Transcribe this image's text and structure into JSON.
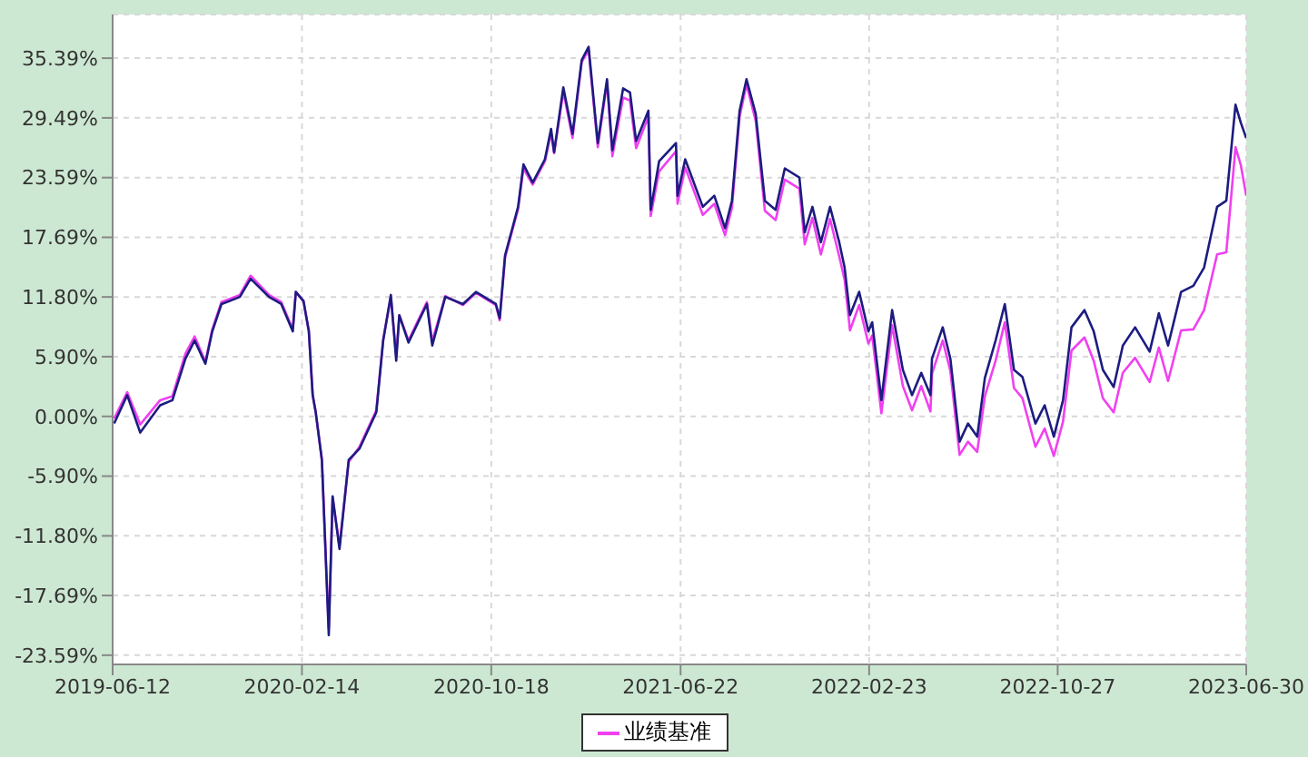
{
  "chart_data": {
    "type": "line",
    "x": [
      "2019-06-14",
      "2019-07-01",
      "2019-07-18",
      "2019-08-13",
      "2019-08-29",
      "2019-09-15",
      "2019-09-27",
      "2019-10-11",
      "2019-10-20",
      "2019-11-01",
      "2019-11-25",
      "2019-12-09",
      "2020-01-02",
      "2020-01-18",
      "2020-02-02",
      "2020-02-06",
      "2020-02-16",
      "2020-02-23",
      "2020-02-28",
      "2020-03-03",
      "2020-03-11",
      "2020-03-20",
      "2020-03-25",
      "2020-04-03",
      "2020-04-15",
      "2020-04-29",
      "2020-05-21",
      "2020-05-30",
      "2020-06-09",
      "2020-06-16",
      "2020-06-20",
      "2020-07-02",
      "2020-07-26",
      "2020-08-02",
      "2020-08-19",
      "2020-09-11",
      "2020-09-28",
      "2020-10-24",
      "2020-10-29",
      "2020-11-05",
      "2020-11-22",
      "2020-11-29",
      "2020-12-11",
      "2020-12-27",
      "2021-01-04",
      "2021-01-08",
      "2021-01-20",
      "2021-02-01",
      "2021-02-13",
      "2021-02-22",
      "2021-03-06",
      "2021-03-18",
      "2021-03-25",
      "2021-04-08",
      "2021-04-17",
      "2021-04-25",
      "2021-05-11",
      "2021-05-14",
      "2021-05-25",
      "2021-06-16",
      "2021-06-18",
      "2021-06-28",
      "2021-07-21",
      "2021-08-05",
      "2021-08-19",
      "2021-08-28",
      "2021-09-07",
      "2021-09-16",
      "2021-09-28",
      "2021-10-10",
      "2021-10-24",
      "2021-11-05",
      "2021-11-24",
      "2021-12-01",
      "2021-12-11",
      "2021-12-22",
      "2022-01-03",
      "2022-01-15",
      "2022-01-22",
      "2022-01-29",
      "2022-02-10",
      "2022-02-22",
      "2022-02-27",
      "2022-03-11",
      "2022-03-25",
      "2022-04-08",
      "2022-04-20",
      "2022-05-02",
      "2022-05-14",
      "2022-05-16",
      "2022-05-30",
      "2022-06-09",
      "2022-06-21",
      "2022-07-02",
      "2022-07-14",
      "2022-07-24",
      "2022-08-07",
      "2022-08-19",
      "2022-08-31",
      "2022-09-11",
      "2022-09-28",
      "2022-10-10",
      "2022-10-22",
      "2022-11-03",
      "2022-11-14",
      "2022-12-01",
      "2022-12-13",
      "2022-12-25",
      "2023-01-08",
      "2023-01-20",
      "2023-02-05",
      "2023-02-24",
      "2023-03-08",
      "2023-03-20",
      "2023-04-06",
      "2023-04-22",
      "2023-05-06",
      "2023-05-23",
      "2023-06-04",
      "2023-06-16",
      "2023-06-23",
      "2023-06-30"
    ],
    "series": [
      {
        "color": "#1c1c80",
        "values": [
          -0.7,
          2.1,
          -1.6,
          1.1,
          1.6,
          5.7,
          7.5,
          5.2,
          8.4,
          11.1,
          11.8,
          13.6,
          11.8,
          11.1,
          8.4,
          12.3,
          11.4,
          8.4,
          2.1,
          0.4,
          -4.3,
          -21.6,
          -7.9,
          -13.1,
          -4.3,
          -3.2,
          0.4,
          7.5,
          12.0,
          5.5,
          10.0,
          7.3,
          11.1,
          7.0,
          11.8,
          11.1,
          12.3,
          11.1,
          9.7,
          15.9,
          20.7,
          24.9,
          23.1,
          25.4,
          28.4,
          26.1,
          32.5,
          27.9,
          35.2,
          36.5,
          27.0,
          33.3,
          26.3,
          32.4,
          32.0,
          27.2,
          30.2,
          20.4,
          25.2,
          27.0,
          21.8,
          25.4,
          20.7,
          21.8,
          18.6,
          21.3,
          30.2,
          33.3,
          29.9,
          21.3,
          20.4,
          24.5,
          23.6,
          18.2,
          20.7,
          17.2,
          20.7,
          17.2,
          14.7,
          10.0,
          12.3,
          8.4,
          9.3,
          1.6,
          10.5,
          4.6,
          2.1,
          4.3,
          2.1,
          5.7,
          8.8,
          5.7,
          -2.5,
          -0.7,
          -2.0,
          3.8,
          7.5,
          11.1,
          4.6,
          3.9,
          -0.7,
          1.1,
          -2.0,
          1.6,
          8.8,
          10.5,
          8.4,
          4.6,
          2.9,
          7.0,
          8.8,
          6.4,
          10.2,
          7.0,
          12.3,
          12.9,
          14.7,
          20.7,
          21.3,
          30.8,
          29.0,
          27.5
        ]
      },
      {
        "name": "业绩基准",
        "color": "#f040f0",
        "values": [
          -0.2,
          2.4,
          -0.8,
          1.6,
          2.0,
          6.2,
          7.9,
          5.4,
          8.6,
          11.3,
          12.0,
          13.9,
          12.0,
          11.3,
          8.6,
          12.3,
          11.4,
          8.4,
          2.1,
          0.4,
          -4.3,
          -21.0,
          -8.0,
          -12.8,
          -4.5,
          -3.0,
          0.6,
          7.6,
          11.8,
          6.0,
          10.0,
          7.5,
          11.3,
          7.4,
          11.9,
          11.0,
          12.2,
          11.0,
          9.5,
          15.7,
          20.5,
          24.5,
          22.9,
          25.2,
          28.0,
          26.0,
          32.1,
          27.5,
          35.0,
          36.2,
          26.6,
          33.0,
          25.7,
          31.5,
          31.2,
          26.5,
          29.6,
          19.8,
          24.2,
          26.2,
          21.0,
          24.6,
          19.9,
          21.0,
          17.9,
          20.6,
          29.6,
          32.8,
          29.2,
          20.3,
          19.4,
          23.4,
          22.5,
          17.0,
          19.6,
          16.0,
          19.5,
          15.8,
          13.5,
          8.5,
          11.0,
          7.2,
          8.0,
          0.3,
          9.0,
          3.0,
          0.6,
          3.0,
          0.5,
          4.2,
          7.5,
          4.5,
          -3.8,
          -2.5,
          -3.5,
          2.0,
          5.5,
          9.3,
          2.8,
          1.8,
          -3.0,
          -1.2,
          -3.9,
          -0.5,
          6.5,
          7.8,
          5.5,
          1.8,
          0.4,
          4.3,
          5.8,
          3.4,
          6.8,
          3.5,
          8.5,
          8.6,
          10.5,
          16.0,
          16.2,
          26.6,
          24.8,
          21.8
        ]
      }
    ],
    "xlim": [
      "2019-06-12",
      "2023-06-30"
    ],
    "xticks": [
      "2019-06-12",
      "2020-02-14",
      "2020-10-18",
      "2021-06-22",
      "2022-02-23",
      "2022-10-27",
      "2023-06-30"
    ],
    "ylim": [
      -24.5,
      39.7
    ],
    "yticks": [
      {
        "value": -23.59,
        "label": "-23.59%"
      },
      {
        "value": -17.69,
        "label": "-17.69%"
      },
      {
        "value": -11.8,
        "label": "-11.80%"
      },
      {
        "value": -5.9,
        "label": "-5.90%"
      },
      {
        "value": 0,
        "label": "0.00%"
      },
      {
        "value": 5.9,
        "label": "5.90%"
      },
      {
        "value": 11.8,
        "label": "11.80%"
      },
      {
        "value": 17.69,
        "label": "17.69%"
      },
      {
        "value": 23.59,
        "label": "23.59%"
      },
      {
        "value": 29.49,
        "label": "29.49%"
      },
      {
        "value": 35.39,
        "label": "35.39%"
      }
    ],
    "grid": true,
    "legend": "bottom",
    "marker": "none",
    "line_style": "solid"
  }
}
